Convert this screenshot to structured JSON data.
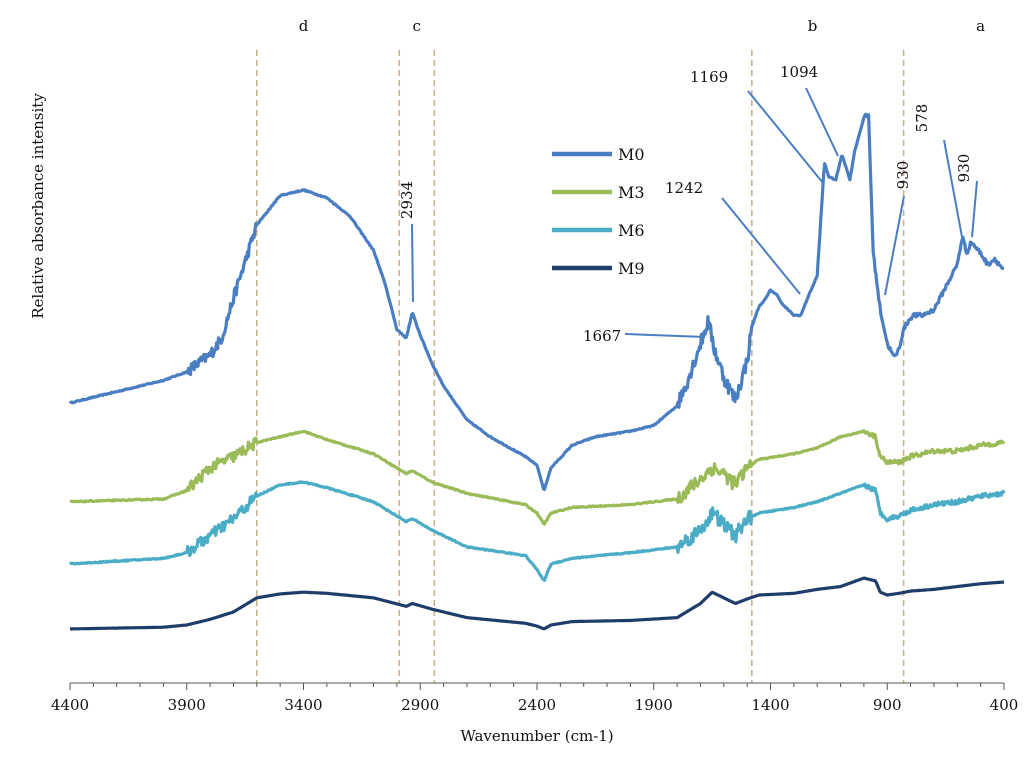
{
  "chart_data": {
    "type": "line",
    "title": "",
    "xlabel": "Wavenumber (cm-1)",
    "ylabel": "Relative absorbance intensity",
    "x_reversed": true,
    "xlim": [
      4400,
      400
    ],
    "ylim": [
      0,
      1
    ],
    "x_ticks": [
      4400,
      3900,
      3400,
      2900,
      2400,
      1900,
      1400,
      900,
      400
    ],
    "y_ticks_shown": false,
    "grid": false,
    "legend_position": "center-right",
    "series": [
      {
        "name": "M0",
        "color": "#4a7ec2",
        "noisy": true,
        "x": [
          4400,
          4000,
          3900,
          3800,
          3750,
          3700,
          3600,
          3500,
          3400,
          3300,
          3200,
          3100,
          3050,
          3000,
          2960,
          2934,
          2900,
          2850,
          2800,
          2700,
          2600,
          2450,
          2400,
          2370,
          2340,
          2250,
          2150,
          2000,
          1900,
          1800,
          1750,
          1700,
          1667,
          1640,
          1600,
          1550,
          1500,
          1480,
          1450,
          1420,
          1400,
          1370,
          1350,
          1300,
          1270,
          1242,
          1200,
          1169,
          1150,
          1120,
          1094,
          1060,
          1040,
          1000,
          980,
          960,
          930,
          900,
          870,
          850,
          830,
          810,
          790,
          770,
          750,
          700,
          650,
          600,
          578,
          560,
          540,
          500,
          470,
          440,
          420,
          400
        ],
        "y": [
          0.455,
          0.495,
          0.51,
          0.54,
          0.57,
          0.64,
          0.77,
          0.822,
          0.832,
          0.818,
          0.785,
          0.725,
          0.665,
          0.585,
          0.57,
          0.615,
          0.575,
          0.525,
          0.485,
          0.425,
          0.395,
          0.36,
          0.345,
          0.3,
          0.34,
          0.38,
          0.395,
          0.405,
          0.415,
          0.45,
          0.5,
          0.56,
          0.6,
          0.55,
          0.5,
          0.46,
          0.53,
          0.59,
          0.625,
          0.64,
          0.655,
          0.645,
          0.63,
          0.61,
          0.61,
          0.64,
          0.68,
          0.88,
          0.855,
          0.85,
          0.895,
          0.85,
          0.9,
          0.96,
          0.965,
          0.72,
          0.62,
          0.56,
          0.535,
          0.55,
          0.585,
          0.6,
          0.61,
          0.61,
          0.61,
          0.62,
          0.66,
          0.7,
          0.75,
          0.72,
          0.74,
          0.72,
          0.7,
          0.71,
          0.7,
          0.69
        ]
      },
      {
        "name": "M3",
        "color": "#9bbb59",
        "noisy": true,
        "x": [
          4400,
          4000,
          3900,
          3800,
          3700,
          3600,
          3500,
          3400,
          3300,
          3100,
          2960,
          2934,
          2850,
          2700,
          2450,
          2400,
          2370,
          2340,
          2250,
          2000,
          1800,
          1700,
          1650,
          1600,
          1550,
          1500,
          1450,
          1300,
          1200,
          1100,
          1000,
          950,
          930,
          900,
          850,
          800,
          700,
          600,
          500,
          400
        ],
        "y": [
          0.28,
          0.285,
          0.3,
          0.34,
          0.36,
          0.385,
          0.395,
          0.405,
          0.39,
          0.365,
          0.33,
          0.335,
          0.315,
          0.295,
          0.275,
          0.26,
          0.24,
          0.26,
          0.27,
          0.275,
          0.285,
          0.32,
          0.34,
          0.33,
          0.31,
          0.34,
          0.355,
          0.365,
          0.375,
          0.395,
          0.405,
          0.395,
          0.36,
          0.35,
          0.35,
          0.36,
          0.37,
          0.37,
          0.38,
          0.385
        ]
      },
      {
        "name": "M6",
        "color": "#4bacc6",
        "noisy": true,
        "x": [
          4400,
          4000,
          3900,
          3800,
          3700,
          3600,
          3500,
          3400,
          3300,
          3100,
          2960,
          2934,
          2850,
          2700,
          2450,
          2400,
          2370,
          2340,
          2250,
          2000,
          1800,
          1700,
          1650,
          1600,
          1550,
          1500,
          1450,
          1300,
          1200,
          1100,
          1000,
          950,
          930,
          900,
          850,
          800,
          700,
          600,
          500,
          400
        ],
        "y": [
          0.17,
          0.18,
          0.19,
          0.22,
          0.25,
          0.29,
          0.31,
          0.315,
          0.305,
          0.28,
          0.245,
          0.25,
          0.23,
          0.2,
          0.185,
          0.16,
          0.14,
          0.17,
          0.18,
          0.19,
          0.2,
          0.23,
          0.26,
          0.24,
          0.22,
          0.25,
          0.26,
          0.27,
          0.28,
          0.295,
          0.31,
          0.3,
          0.26,
          0.25,
          0.255,
          0.265,
          0.275,
          0.28,
          0.29,
          0.295
        ]
      },
      {
        "name": "M9",
        "color": "#1f3d6b",
        "noisy": false,
        "x": [
          4400,
          4000,
          3900,
          3800,
          3700,
          3600,
          3500,
          3400,
          3300,
          3100,
          2960,
          2934,
          2850,
          2700,
          2450,
          2400,
          2370,
          2340,
          2250,
          2000,
          1800,
          1700,
          1650,
          1600,
          1550,
          1500,
          1450,
          1300,
          1200,
          1100,
          1000,
          950,
          930,
          900,
          850,
          800,
          700,
          600,
          500,
          400
        ],
        "y": [
          0.055,
          0.058,
          0.062,
          0.072,
          0.085,
          0.11,
          0.117,
          0.12,
          0.118,
          0.11,
          0.095,
          0.1,
          0.09,
          0.075,
          0.065,
          0.06,
          0.055,
          0.062,
          0.068,
          0.07,
          0.075,
          0.1,
          0.12,
          0.11,
          0.1,
          0.108,
          0.115,
          0.118,
          0.125,
          0.13,
          0.145,
          0.14,
          0.12,
          0.115,
          0.118,
          0.122,
          0.125,
          0.13,
          0.135,
          0.138
        ]
      }
    ],
    "region_lines": [
      3600,
      2990,
      2840,
      1480,
      830
    ],
    "region_labels": [
      {
        "text": "d",
        "x": 3400
      },
      {
        "text": "c",
        "x": 2915
      },
      {
        "text": "b",
        "x": 1220
      },
      {
        "text": "a",
        "x": 500
      }
    ],
    "annotations": [
      {
        "text": "2934",
        "x": 2934,
        "y": 0.615,
        "rotated": true
      },
      {
        "text": "1667",
        "x": 1667,
        "y": 0.6,
        "rotated": false
      },
      {
        "text": "1242",
        "x": 1242,
        "y": 0.64,
        "rotated": false
      },
      {
        "text": "1169",
        "x": 1169,
        "y": 0.88,
        "rotated": false
      },
      {
        "text": "1094",
        "x": 1094,
        "y": 0.895,
        "rotated": false
      },
      {
        "text": "930",
        "x": 900,
        "y": 0.61,
        "rotated": true
      },
      {
        "text": "578",
        "x": 578,
        "y": 0.75,
        "rotated": true
      },
      {
        "text": "930",
        "x": 540,
        "y": 0.74,
        "rotated": true
      }
    ]
  }
}
